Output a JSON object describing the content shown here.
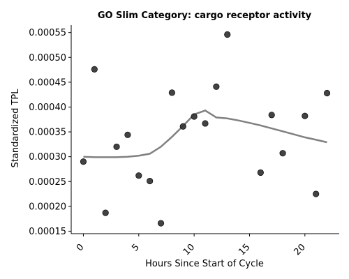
{
  "chart_data": {
    "type": "scatter",
    "title": "GO Slim Category: cargo receptor activity",
    "xlabel": "Hours Since Start of Cycle",
    "ylabel": "Standardized TPL",
    "xlim": [
      -1.1,
      23.1
    ],
    "ylim": [
      0.000145,
      0.000565
    ],
    "x_ticks": [
      "0",
      "5",
      "10",
      "15",
      "20"
    ],
    "x_tick_values": [
      0,
      5,
      10,
      15,
      20
    ],
    "y_ticks": [
      "0.00015",
      "0.00020",
      "0.00025",
      "0.00030",
      "0.00035",
      "0.00040",
      "0.00045",
      "0.00050",
      "0.00055"
    ],
    "y_tick_values": [
      0.00015,
      0.0002,
      0.00025,
      0.0003,
      0.00035,
      0.0004,
      0.00045,
      0.0005,
      0.00055
    ],
    "grid": false,
    "colors": {
      "points": "#333333",
      "trend": "#808080"
    },
    "points": {
      "x": [
        0,
        1,
        2,
        3,
        4,
        5,
        6,
        7,
        8,
        9,
        10,
        11,
        12,
        13,
        16,
        17,
        18,
        20,
        21,
        22
      ],
      "y": [
        0.00029,
        0.000476,
        0.000187,
        0.00032,
        0.000344,
        0.000262,
        0.000251,
        0.000166,
        0.000429,
        0.000361,
        0.000381,
        0.000367,
        0.000441,
        0.000546,
        0.000268,
        0.000384,
        0.000307,
        0.000382,
        0.000225,
        0.000428
      ]
    },
    "trend": {
      "x": [
        0,
        1,
        2,
        3,
        4,
        5,
        6,
        7,
        8,
        9,
        10,
        11,
        12,
        13,
        14,
        15,
        16,
        17,
        18,
        19,
        20,
        21,
        22
      ],
      "y": [
        0.0003,
        0.000299,
        0.000299,
        0.000299,
        0.0003,
        0.000302,
        0.000306,
        0.00032,
        0.00034,
        0.000362,
        0.000385,
        0.000393,
        0.000379,
        0.000377,
        0.000373,
        0.000368,
        0.000363,
        0.000357,
        0.000351,
        0.000345,
        0.000339,
        0.000334,
        0.000329
      ]
    }
  }
}
